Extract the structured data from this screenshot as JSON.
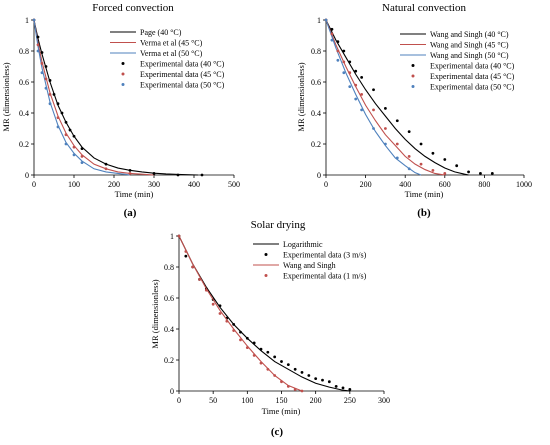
{
  "chart_data": [
    {
      "id": "a",
      "type": "line",
      "title": "Forced convection",
      "xlabel": "Time (min)",
      "ylabel": "MR (dimensionless)",
      "xlim": [
        0,
        500
      ],
      "ylim": [
        0,
        1
      ],
      "xticks": [
        "0",
        "100",
        "200",
        "300",
        "400",
        "500"
      ],
      "yticks": [
        "0",
        "0.2",
        "0.4",
        "0.6",
        "0.8",
        "1"
      ],
      "panel_label": "(a)",
      "legend_position": "top-right",
      "series": [
        {
          "name": "Page (40 °C)",
          "kind": "line",
          "color": "#000000",
          "x": [
            0,
            10,
            20,
            40,
            60,
            80,
            100,
            120,
            150,
            180,
            210,
            240,
            270,
            300,
            330,
            360,
            410
          ],
          "y": [
            1.0,
            0.88,
            0.78,
            0.6,
            0.45,
            0.34,
            0.25,
            0.18,
            0.11,
            0.07,
            0.045,
            0.03,
            0.02,
            0.012,
            0.007,
            0.004,
            0.0
          ]
        },
        {
          "name": "Verma et al (45 °C)",
          "kind": "line",
          "color": "#c0504d",
          "x": [
            0,
            10,
            20,
            40,
            60,
            80,
            100,
            120,
            150,
            180,
            210,
            240,
            270,
            300
          ],
          "y": [
            1.0,
            0.85,
            0.73,
            0.53,
            0.38,
            0.27,
            0.19,
            0.13,
            0.07,
            0.04,
            0.02,
            0.01,
            0.005,
            0.0
          ]
        },
        {
          "name": "Verma et al (50 °C)",
          "kind": "line",
          "color": "#4f81bd",
          "x": [
            0,
            10,
            20,
            40,
            60,
            80,
            100,
            120,
            150,
            180,
            210,
            240
          ],
          "y": [
            1.0,
            0.83,
            0.69,
            0.47,
            0.32,
            0.21,
            0.14,
            0.09,
            0.04,
            0.02,
            0.01,
            0.0
          ]
        },
        {
          "name": "Experimental data (40 °C)",
          "kind": "points",
          "color": "#000000",
          "x": [
            0,
            10,
            20,
            30,
            40,
            50,
            60,
            70,
            80,
            90,
            100,
            120,
            180,
            240,
            300,
            360,
            420
          ],
          "y": [
            1.0,
            0.89,
            0.79,
            0.7,
            0.61,
            0.52,
            0.46,
            0.4,
            0.34,
            0.29,
            0.25,
            0.17,
            0.07,
            0.03,
            0.01,
            0.0,
            0.0
          ]
        },
        {
          "name": "Experimental data (45 °C)",
          "kind": "points",
          "color": "#c0504d",
          "x": [
            0,
            10,
            20,
            30,
            40,
            60,
            80,
            100,
            120,
            180,
            240
          ],
          "y": [
            1.0,
            0.84,
            0.72,
            0.62,
            0.52,
            0.37,
            0.26,
            0.18,
            0.12,
            0.04,
            0.01
          ]
        },
        {
          "name": "Experimental data (50 °C)",
          "kind": "points",
          "color": "#4f81bd",
          "x": [
            0,
            10,
            20,
            30,
            40,
            60,
            80,
            100,
            120
          ],
          "y": [
            1.0,
            0.8,
            0.66,
            0.56,
            0.46,
            0.31,
            0.2,
            0.13,
            0.08
          ]
        }
      ]
    },
    {
      "id": "b",
      "type": "line",
      "title": "Natural convection",
      "xlabel": "Time (min)",
      "ylabel": "MR (dimensionless)",
      "xlim": [
        0,
        1000
      ],
      "ylim": [
        0,
        1
      ],
      "xticks": [
        "0",
        "200",
        "400",
        "600",
        "800",
        "1000"
      ],
      "yticks": [
        "0",
        "0.2",
        "0.4",
        "0.6",
        "0.8",
        "1"
      ],
      "panel_label": "(b)",
      "legend_position": "top-right",
      "series": [
        {
          "name": "Wang and Singh (40 °C)",
          "kind": "line",
          "color": "#000000",
          "x": [
            0,
            50,
            100,
            150,
            200,
            250,
            300,
            350,
            400,
            450,
            500,
            550,
            600,
            650,
            700,
            720
          ],
          "y": [
            1.0,
            0.87,
            0.76,
            0.65,
            0.55,
            0.46,
            0.38,
            0.3,
            0.23,
            0.17,
            0.12,
            0.08,
            0.045,
            0.02,
            0.005,
            0.0
          ]
        },
        {
          "name": "Wang and Singh (45 °C)",
          "kind": "line",
          "color": "#c0504d",
          "x": [
            0,
            50,
            100,
            150,
            200,
            250,
            300,
            350,
            400,
            450,
            500,
            550,
            600
          ],
          "y": [
            1.0,
            0.84,
            0.7,
            0.57,
            0.45,
            0.35,
            0.26,
            0.19,
            0.12,
            0.07,
            0.035,
            0.01,
            0.0
          ]
        },
        {
          "name": "Wang and Singh (50 °C)",
          "kind": "line",
          "color": "#4f81bd",
          "x": [
            0,
            50,
            100,
            150,
            200,
            250,
            300,
            350,
            400,
            450,
            480
          ],
          "y": [
            1.0,
            0.82,
            0.66,
            0.52,
            0.39,
            0.28,
            0.19,
            0.11,
            0.06,
            0.015,
            0.0
          ]
        },
        {
          "name": "Experimental data (40 °C)",
          "kind": "points",
          "color": "#000000",
          "x": [
            0,
            30,
            60,
            90,
            120,
            150,
            180,
            240,
            300,
            360,
            420,
            480,
            540,
            600,
            660,
            720,
            780,
            840
          ],
          "y": [
            1.0,
            0.94,
            0.86,
            0.8,
            0.73,
            0.67,
            0.63,
            0.55,
            0.43,
            0.35,
            0.28,
            0.2,
            0.14,
            0.1,
            0.06,
            0.02,
            0.01,
            0.01
          ]
        },
        {
          "name": "Experimental data (45 °C)",
          "kind": "points",
          "color": "#c0504d",
          "x": [
            0,
            30,
            60,
            90,
            120,
            150,
            180,
            240,
            300,
            360,
            420,
            480,
            540,
            600
          ],
          "y": [
            1.0,
            0.91,
            0.8,
            0.73,
            0.66,
            0.58,
            0.52,
            0.42,
            0.3,
            0.2,
            0.12,
            0.07,
            0.03,
            0.01
          ]
        },
        {
          "name": "Experimental data (50 °C)",
          "kind": "points",
          "color": "#4f81bd",
          "x": [
            0,
            30,
            60,
            90,
            120,
            150,
            180,
            240,
            300,
            360,
            420
          ],
          "y": [
            1.0,
            0.87,
            0.74,
            0.66,
            0.57,
            0.49,
            0.42,
            0.3,
            0.2,
            0.11,
            0.04
          ]
        }
      ]
    },
    {
      "id": "c",
      "type": "line",
      "title": "Solar drying",
      "xlabel": "Time (min)",
      "ylabel": "MR (dimensionless)",
      "xlim": [
        0,
        300
      ],
      "ylim": [
        0,
        1
      ],
      "xticks": [
        "0",
        "50",
        "100",
        "150",
        "200",
        "250",
        "300"
      ],
      "yticks": [
        "0",
        "0.2",
        "0.4",
        "0.6",
        "0.8",
        "1"
      ],
      "panel_label": "(c)",
      "legend_position": "top-right",
      "series": [
        {
          "name": "Logarithmic",
          "kind": "line",
          "color": "#000000",
          "x": [
            0,
            20,
            40,
            60,
            80,
            100,
            120,
            140,
            160,
            180,
            200,
            220,
            240,
            250
          ],
          "y": [
            1.0,
            0.82,
            0.67,
            0.54,
            0.43,
            0.34,
            0.26,
            0.19,
            0.14,
            0.09,
            0.05,
            0.025,
            0.005,
            0.0
          ]
        },
        {
          "name": "Experimental data (3 m/s)",
          "kind": "points",
          "color": "#000000",
          "x": [
            0,
            10,
            20,
            30,
            40,
            50,
            60,
            70,
            80,
            90,
            100,
            110,
            120,
            130,
            140,
            150,
            160,
            170,
            180,
            190,
            200,
            210,
            220,
            230,
            240,
            250
          ],
          "y": [
            1.0,
            0.87,
            0.8,
            0.72,
            0.66,
            0.59,
            0.55,
            0.47,
            0.43,
            0.38,
            0.34,
            0.31,
            0.27,
            0.25,
            0.22,
            0.19,
            0.17,
            0.14,
            0.12,
            0.1,
            0.08,
            0.07,
            0.06,
            0.03,
            0.02,
            0.01
          ]
        },
        {
          "name": "Wang and Singh",
          "kind": "line",
          "color": "#c0504d",
          "x": [
            0,
            20,
            40,
            60,
            80,
            100,
            120,
            140,
            160,
            180
          ],
          "y": [
            1.0,
            0.82,
            0.66,
            0.52,
            0.4,
            0.29,
            0.19,
            0.1,
            0.035,
            0.0
          ]
        },
        {
          "name": "Experimental data (1 m/s)",
          "kind": "points",
          "color": "#c0504d",
          "x": [
            0,
            10,
            20,
            30,
            40,
            50,
            60,
            70,
            80,
            90,
            100,
            110,
            120,
            130,
            140,
            150,
            160,
            170,
            180
          ],
          "y": [
            1.0,
            0.9,
            0.8,
            0.72,
            0.65,
            0.56,
            0.5,
            0.45,
            0.39,
            0.33,
            0.28,
            0.23,
            0.18,
            0.14,
            0.1,
            0.06,
            0.03,
            0.01,
            0.0
          ]
        }
      ]
    }
  ]
}
